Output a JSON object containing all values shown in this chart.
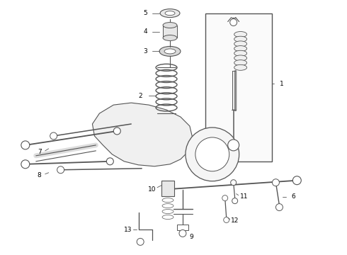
{
  "bg_color": "#ffffff",
  "line_color": "#555555",
  "label_color": "#000000",
  "figsize": [
    4.9,
    3.6
  ],
  "dpi": 100,
  "label_fs": 6.5,
  "lw_main": 0.9,
  "lw_thin": 0.6
}
